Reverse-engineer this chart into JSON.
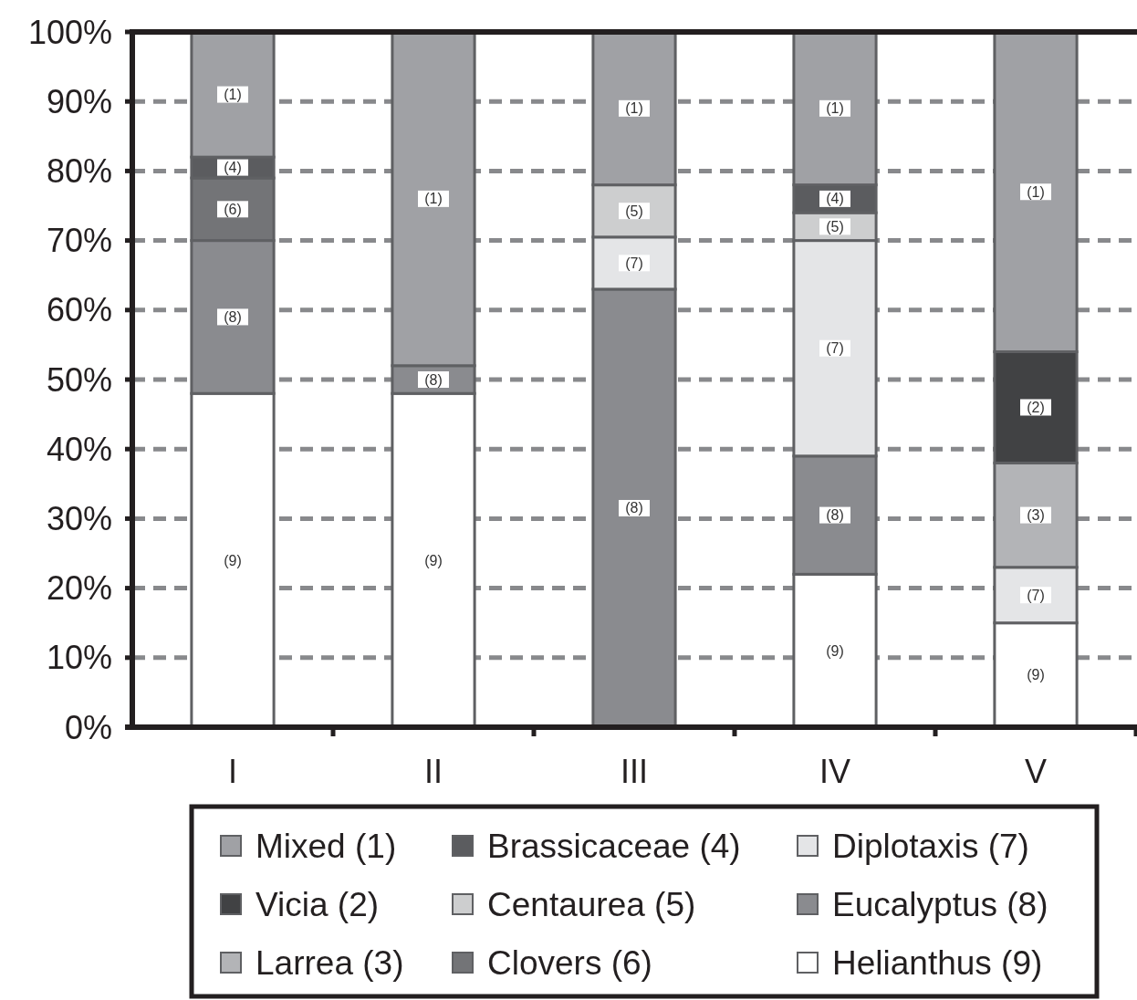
{
  "chart_data": {
    "type": "bar",
    "stacked": true,
    "categories": [
      "I",
      "II",
      "III",
      "IV",
      "V"
    ],
    "series": [
      {
        "name": "Helianthus (9)",
        "color": "#ffffff",
        "values": [
          48,
          48,
          null,
          22,
          15
        ]
      },
      {
        "name": "Eucalyptus (8)",
        "color": "#8a8b8f",
        "values": [
          22,
          4,
          63,
          17,
          null
        ]
      },
      {
        "name": "Diplotaxis (7)",
        "color": "#e4e5e7",
        "values": [
          null,
          null,
          7.5,
          31,
          8
        ]
      },
      {
        "name": "Clovers (6)",
        "color": "#737477",
        "values": [
          9,
          null,
          null,
          null,
          null
        ]
      },
      {
        "name": "Centaurea (5)",
        "color": "#cdcecf",
        "values": [
          null,
          null,
          7.5,
          4,
          null
        ]
      },
      {
        "name": "Brassicaceae (4)",
        "color": "#5b5c5f",
        "values": [
          3,
          null,
          null,
          4,
          null
        ]
      },
      {
        "name": "Larrea (3)",
        "color": "#b3b4b7",
        "values": [
          null,
          null,
          null,
          null,
          15
        ]
      },
      {
        "name": "Vicia (2)",
        "color": "#414244",
        "values": [
          null,
          null,
          null,
          null,
          16
        ]
      },
      {
        "name": "Mixed (1)",
        "color": "#a0a1a5",
        "values": [
          18,
          48,
          22,
          22,
          46
        ]
      }
    ],
    "annotations": [
      {
        "text": "(9)",
        "x": "I",
        "y": 24
      },
      {
        "text": "(8)",
        "x": "I",
        "y": 59
      },
      {
        "text": "(6)",
        "x": "I",
        "y": 74.5
      },
      {
        "text": "(4)",
        "x": "I",
        "y": 80.5
      },
      {
        "text": "(1)",
        "x": "I",
        "y": 91
      },
      {
        "text": "(9)",
        "x": "II",
        "y": 24
      },
      {
        "text": "(8)",
        "x": "II",
        "y": 50
      },
      {
        "text": "(1)",
        "x": "II",
        "y": 76
      },
      {
        "text": "(8)",
        "x": "III",
        "y": 31.5
      },
      {
        "text": "(7)",
        "x": "III",
        "y": 66.75
      },
      {
        "text": "(5)",
        "x": "III",
        "y": 74.25
      },
      {
        "text": "(1)",
        "x": "III",
        "y": 89
      },
      {
        "text": "(9)",
        "x": "IV",
        "y": 11
      },
      {
        "text": "(8)",
        "x": "IV",
        "y": 30.5
      },
      {
        "text": "(7)",
        "x": "IV",
        "y": 54.5
      },
      {
        "text": "(5)",
        "x": "IV",
        "y": 72
      },
      {
        "text": "(4)",
        "x": "IV",
        "y": 76
      },
      {
        "text": "(1)",
        "x": "IV",
        "y": 89
      },
      {
        "text": "(9)",
        "x": "V",
        "y": 7.5
      },
      {
        "text": "(7)",
        "x": "V",
        "y": 19
      },
      {
        "text": "(3)",
        "x": "V",
        "y": 30.5
      },
      {
        "text": "(2)",
        "x": "V",
        "y": 46
      },
      {
        "text": "(1)",
        "x": "V",
        "y": 77
      }
    ],
    "ylim": [
      0,
      100
    ],
    "yticks": [
      {
        "value": 0,
        "label": "0%"
      },
      {
        "value": 10,
        "label": "10%"
      },
      {
        "value": 20,
        "label": "20%"
      },
      {
        "value": 30,
        "label": "30%"
      },
      {
        "value": 40,
        "label": "40%"
      },
      {
        "value": 50,
        "label": "50%"
      },
      {
        "value": 60,
        "label": "60%"
      },
      {
        "value": 70,
        "label": "70%"
      },
      {
        "value": 80,
        "label": "80%"
      },
      {
        "value": 90,
        "label": "90%"
      },
      {
        "value": 100,
        "label": "100%"
      }
    ],
    "grid": "y",
    "legend": "bottom"
  }
}
